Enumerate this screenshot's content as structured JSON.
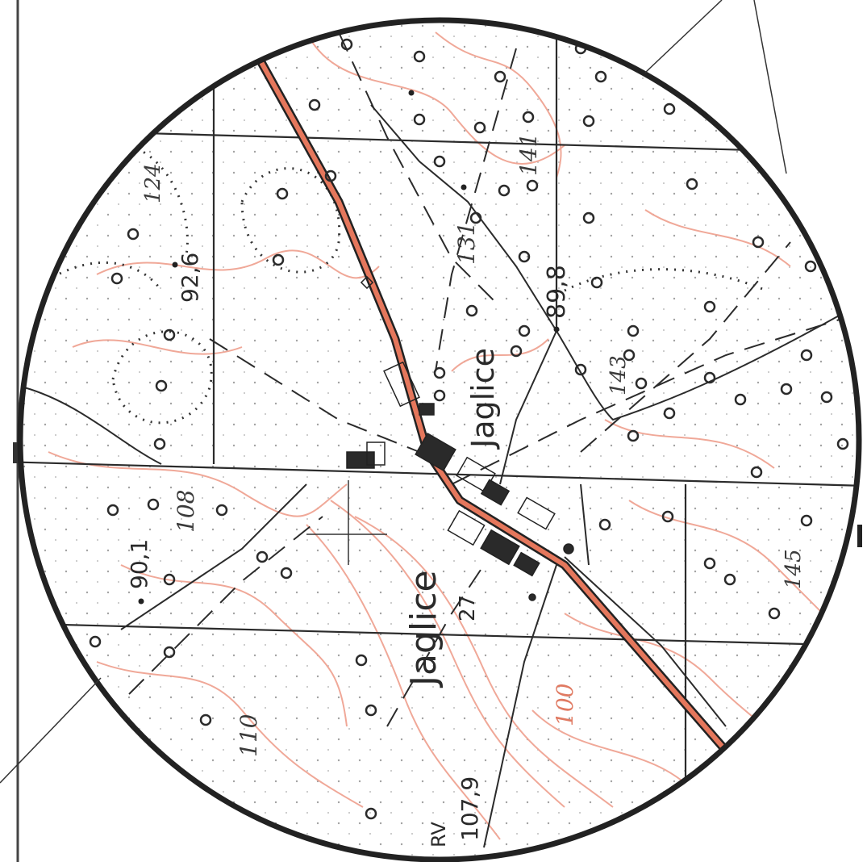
{
  "map": {
    "labels": {
      "village_upper": "Jaglice",
      "village_lower": "Jaglice",
      "elev_124": "124",
      "elev_92_6": "92,6",
      "elev_131": "131",
      "elev_141": "141",
      "elev_89_8": "89,8",
      "elev_143": "143",
      "elev_108": "108",
      "elev_90_1": "90,1",
      "elev_27": "27",
      "elev_145": "145",
      "elev_110": "110",
      "elev_100": "100",
      "elev_107_9": "107,9",
      "rv_marker": "RV"
    },
    "colors": {
      "road": "#e5775c",
      "contour": "#f0a898",
      "grid": "#2b2b2b",
      "frame": "#222222"
    }
  }
}
